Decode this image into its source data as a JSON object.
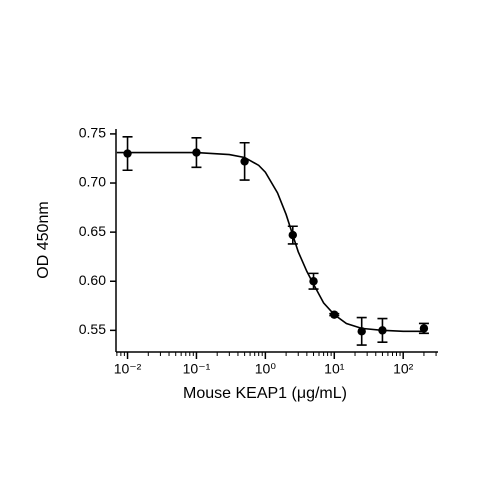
{
  "chart_data": {
    "type": "scatter",
    "x_label": "Mouse KEAP1 (μg/mL)",
    "y_label": "OD 450nm",
    "x_log": true,
    "color": "#000000",
    "points": {
      "x": [
        0.01,
        0.1,
        0.5,
        2.5,
        5,
        10,
        25,
        50,
        200
      ],
      "values": [
        0.73,
        0.731,
        0.722,
        0.647,
        0.6,
        0.566,
        0.549,
        0.55,
        0.552
      ],
      "errors": [
        0.017,
        0.015,
        0.019,
        0.009,
        0.008,
        0.001,
        0.014,
        0.012,
        0.005
      ]
    },
    "fit": {
      "x": [
        0.007,
        0.01,
        0.03,
        0.1,
        0.3,
        0.5,
        0.8,
        1,
        1.5,
        2,
        2.5,
        3,
        4,
        5,
        7,
        10,
        15,
        25,
        50,
        100,
        200
      ],
      "values": [
        0.731,
        0.731,
        0.731,
        0.731,
        0.729,
        0.726,
        0.718,
        0.711,
        0.69,
        0.668,
        0.647,
        0.63,
        0.61,
        0.597,
        0.578,
        0.566,
        0.557,
        0.552,
        0.55,
        0.549,
        0.549
      ]
    },
    "xlim": [
      0.0068,
      320
    ],
    "ylim": [
      0.53,
      0.755
    ],
    "xticks": [
      {
        "value": 0.01,
        "label": "10⁻²"
      },
      {
        "value": 0.1,
        "label": "10⁻¹"
      },
      {
        "value": 1,
        "label": "10⁰"
      },
      {
        "value": 10,
        "label": "10¹"
      },
      {
        "value": 100,
        "label": "10²"
      }
    ],
    "xminorticks": [
      0.007,
      0.008,
      0.009,
      0.02,
      0.03,
      0.04,
      0.05,
      0.06,
      0.07,
      0.08,
      0.09,
      0.2,
      0.3,
      0.4,
      0.5,
      0.6,
      0.7,
      0.8,
      0.9,
      2,
      3,
      4,
      5,
      6,
      7,
      8,
      9,
      20,
      30,
      40,
      50,
      60,
      70,
      80,
      90,
      200,
      300
    ],
    "yticks": [
      {
        "value": 0.55,
        "label": "0.55"
      },
      {
        "value": 0.6,
        "label": "0.60"
      },
      {
        "value": 0.65,
        "label": "0.65"
      },
      {
        "value": 0.7,
        "label": "0.70"
      },
      {
        "value": 0.75,
        "label": "0.75"
      }
    ]
  }
}
